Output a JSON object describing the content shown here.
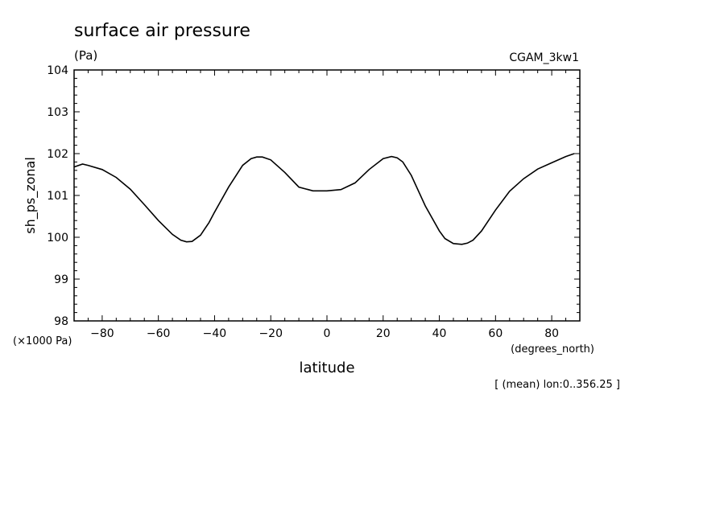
{
  "chart_data": {
    "type": "line",
    "title": "surface air pressure",
    "units": "(Pa)",
    "dataset": "CGAM_3kw1",
    "ylabel": "sh_ps_zonal",
    "xlabel": "latitude",
    "x_units": "(degrees_north)",
    "y_scale_note": "(×1000 Pa)",
    "averaging_note": "[ (mean) lon:0..356.25 ]",
    "xlim": [
      -90,
      90
    ],
    "ylim": [
      98,
      104
    ],
    "x_ticks": [
      -80,
      -60,
      -40,
      -20,
      0,
      20,
      40,
      60,
      80
    ],
    "x_tick_labels": [
      "−80",
      "−60",
      "−40",
      "−20",
      "0",
      "20",
      "40",
      "60",
      "80"
    ],
    "y_ticks": [
      98,
      99,
      100,
      101,
      102,
      103,
      104
    ],
    "y_tick_labels": [
      "98",
      "99",
      "100",
      "101",
      "102",
      "103",
      "104"
    ],
    "grid": false,
    "legend": "none",
    "line_color": "#000000",
    "series": [
      {
        "x": [
          -90,
          -87,
          -85,
          -80,
          -75,
          -70,
          -65,
          -60,
          -55,
          -52,
          -50,
          -48,
          -45,
          -42,
          -40,
          -35,
          -30,
          -27,
          -25,
          -23,
          -20,
          -15,
          -10,
          -5,
          0,
          5,
          10,
          15,
          20,
          23,
          25,
          27,
          30,
          35,
          40,
          42,
          45,
          48,
          50,
          52,
          55,
          60,
          65,
          70,
          75,
          80,
          85,
          88
        ],
        "values": [
          101.68,
          101.75,
          101.72,
          101.62,
          101.43,
          101.15,
          100.78,
          100.4,
          100.07,
          99.93,
          99.89,
          99.9,
          100.05,
          100.35,
          100.6,
          101.2,
          101.72,
          101.88,
          101.92,
          101.92,
          101.85,
          101.55,
          101.2,
          101.11,
          101.11,
          101.14,
          101.3,
          101.62,
          101.88,
          101.93,
          101.9,
          101.8,
          101.48,
          100.75,
          100.15,
          99.97,
          99.85,
          99.83,
          99.86,
          99.93,
          100.15,
          100.65,
          101.1,
          101.4,
          101.63,
          101.78,
          101.93,
          102.0
        ]
      }
    ]
  }
}
